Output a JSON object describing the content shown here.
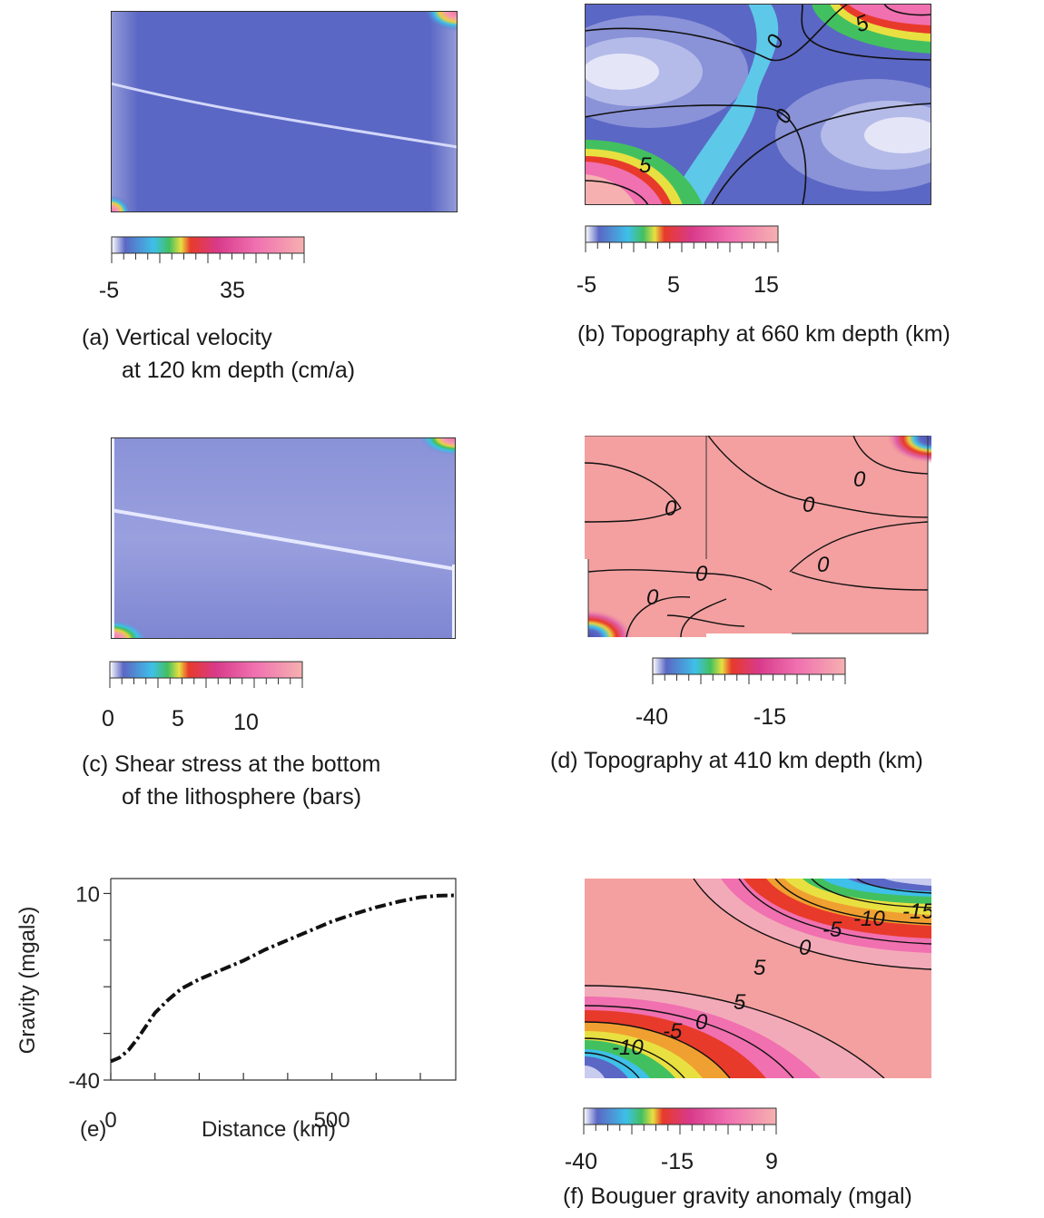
{
  "panels": {
    "a": {
      "caption_line1": "(a) Vertical velocity",
      "caption_line2": "at 120 km depth (cm/a)",
      "colorbar_ticks": [
        "-5",
        "35"
      ]
    },
    "b": {
      "caption": "(b) Topography at 660 km depth (km)",
      "colorbar_ticks": [
        "-5",
        "5",
        "15"
      ],
      "contour_labels": [
        "0",
        "0",
        "5",
        "5"
      ]
    },
    "c": {
      "caption_line1": "(c) Shear stress at the bottom",
      "caption_line2": "of the lithosphere (bars)",
      "colorbar_ticks": [
        "0",
        "5",
        "10"
      ]
    },
    "d": {
      "caption": "(d) Topography at 410 km depth (km)",
      "colorbar_ticks": [
        "-40",
        "-15"
      ],
      "contour_labels": [
        "0",
        "0",
        "0",
        "0",
        "0",
        "0"
      ]
    },
    "e": {
      "panel_label": "(e)"
    },
    "f": {
      "caption": "(f) Bouguer gravity anomaly (mgal)",
      "colorbar_ticks": [
        "-40",
        "-15",
        "9"
      ],
      "contour_labels": [
        "-15",
        "-10",
        "-5",
        "0",
        "5",
        "5",
        "0",
        "-5",
        "-10"
      ]
    }
  },
  "chart_data": {
    "type": "line",
    "xlabel": "Distance (km)",
    "ylabel": "Gravity (mgals)",
    "xlim": [
      0,
      780
    ],
    "ylim": [
      -40,
      14
    ],
    "xticks": [
      0,
      500
    ],
    "yticks": [
      10,
      -40
    ],
    "x": [
      0,
      20,
      40,
      60,
      80,
      100,
      130,
      160,
      200,
      250,
      300,
      350,
      400,
      450,
      500,
      550,
      600,
      650,
      700,
      740,
      780
    ],
    "y": [
      -35,
      -34,
      -32,
      -29,
      -25.5,
      -22,
      -18.5,
      -15.5,
      -13,
      -10.5,
      -8,
      -5,
      -2.5,
      0,
      2.5,
      4.5,
      6.3,
      7.8,
      9,
      9.4,
      9.5
    ]
  },
  "colors": {
    "blue_field": "#5b67c4",
    "pink_field": "#f4a0a0",
    "curve": "#111111"
  }
}
